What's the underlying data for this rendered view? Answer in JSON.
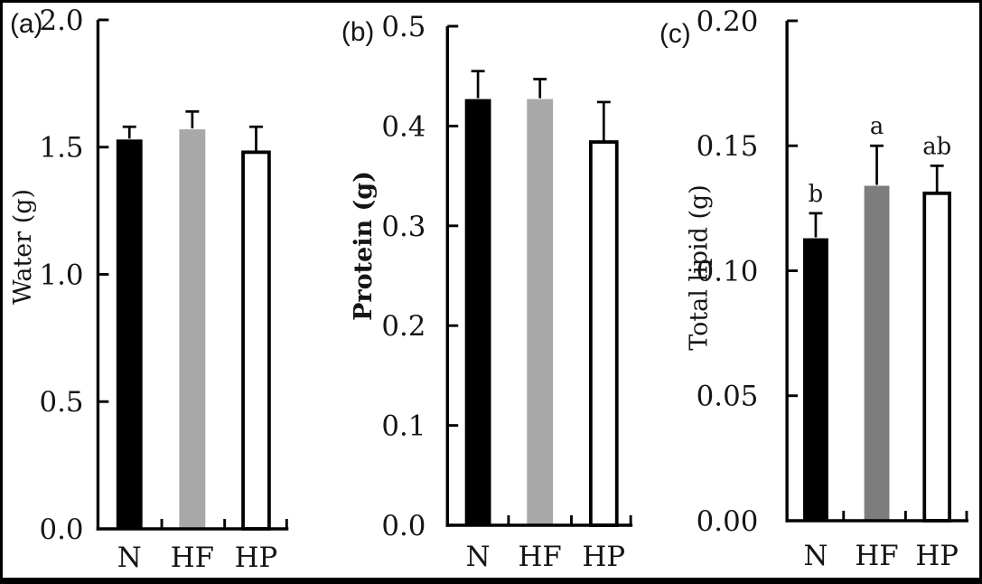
{
  "figure": {
    "background": "#ffffff",
    "border_color": "#000000",
    "axis_color": "#000000",
    "text_color": "#151515"
  },
  "chart_data": [
    {
      "type": "bar",
      "panel_label": "(a)",
      "ylabel": "Water (g)",
      "ylabel_bold": false,
      "categories": [
        "N",
        "HF",
        "HP"
      ],
      "values": [
        1.53,
        1.57,
        1.48
      ],
      "errors_up": [
        0.05,
        0.07,
        0.1
      ],
      "bar_letters": [
        "",
        "",
        ""
      ],
      "ylim": [
        0,
        2.0
      ],
      "ytick_values": [
        0.0,
        0.5,
        1.0,
        1.5,
        2.0
      ],
      "ytick_labels": [
        "0.0",
        "0.5",
        "1.0",
        "1.5",
        "2.0"
      ],
      "bar_colors": [
        "#000000",
        "#a8a8a8",
        "#ffffff"
      ],
      "bar_outline": "#000000",
      "grid": false,
      "legend": "none"
    },
    {
      "type": "bar",
      "panel_label": "(b)",
      "ylabel": "Protein (g)",
      "ylabel_bold": true,
      "categories": [
        "N",
        "HF",
        "HP"
      ],
      "values": [
        0.427,
        0.427,
        0.384
      ],
      "errors_up": [
        0.028,
        0.02,
        0.04
      ],
      "bar_letters": [
        "",
        "",
        ""
      ],
      "ylim": [
        0,
        0.5
      ],
      "ytick_values": [
        0.0,
        0.1,
        0.2,
        0.3,
        0.4,
        0.5
      ],
      "ytick_labels": [
        "0.0",
        "0.1",
        "0.2",
        "0.3",
        "0.4",
        "0.5"
      ],
      "bar_colors": [
        "#000000",
        "#a8a8a8",
        "#ffffff"
      ],
      "bar_outline": "#000000",
      "grid": false,
      "legend": "none"
    },
    {
      "type": "bar",
      "panel_label": "(c)",
      "ylabel": "Total lipid (g)",
      "ylabel_bold": false,
      "categories": [
        "N",
        "HF",
        "HP"
      ],
      "values": [
        0.113,
        0.134,
        0.131
      ],
      "errors_up": [
        0.01,
        0.016,
        0.011
      ],
      "bar_letters": [
        "b",
        "a",
        "ab"
      ],
      "ylim": [
        0,
        0.2
      ],
      "ytick_values": [
        0.0,
        0.05,
        0.1,
        0.15,
        0.2
      ],
      "ytick_labels": [
        "0.00",
        "0.05",
        "0.10",
        "0.15",
        "0.20"
      ],
      "bar_colors": [
        "#000000",
        "#7d7d7d",
        "#ffffff"
      ],
      "bar_outline": "#000000",
      "grid": false,
      "legend": "none"
    }
  ]
}
